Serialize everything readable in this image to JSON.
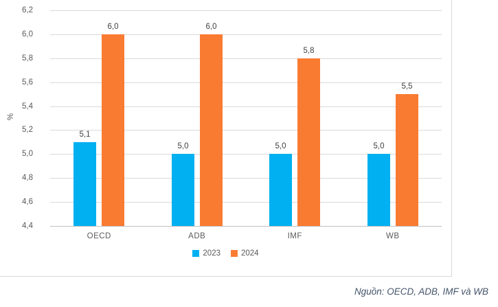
{
  "source_note": "Nguồn: OECD, ADB, IMF và WB",
  "colors": {
    "series_2023": "#00b0f0",
    "series_2024": "#f97b32",
    "gridline": "#d9d9d9",
    "axis_line": "#bfbfbf",
    "tick_text": "#595959",
    "data_label_text": "#404040",
    "source_text": "#44546a"
  },
  "chart_data": {
    "type": "bar",
    "title": "",
    "xlabel": "",
    "ylabel": "%",
    "categories": [
      "OECD",
      "ADB",
      "IMF",
      "WB"
    ],
    "series": [
      {
        "name": "2023",
        "color": "#00b0f0",
        "values": [
          5.1,
          5.0,
          5.0,
          5.0
        ],
        "labels": [
          "5,1",
          "5,0",
          "5,0",
          "5,0"
        ]
      },
      {
        "name": "2024",
        "color": "#f97b32",
        "values": [
          6.0,
          6.0,
          5.8,
          5.5
        ],
        "labels": [
          "6,0",
          "6,0",
          "5,8",
          "5,5"
        ]
      }
    ],
    "ylim": [
      4.4,
      6.2
    ],
    "yticks": [
      6.2,
      6.0,
      5.8,
      5.6,
      5.4,
      5.2,
      5.0,
      4.8,
      4.6,
      4.4
    ],
    "ytick_labels": [
      "6,2",
      "6,0",
      "5,8",
      "5,6",
      "5,4",
      "5,2",
      "5,0",
      "4,8",
      "4,6",
      "4,4"
    ],
    "grid": true,
    "decimal_separator": ",",
    "legend_position": "bottom"
  }
}
